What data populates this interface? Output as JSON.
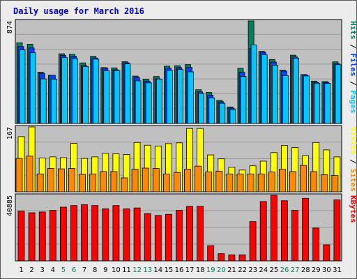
{
  "chart_data": {
    "type": "bar",
    "title": "Daily usage for March 2016",
    "categories": [
      "1",
      "2",
      "3",
      "4",
      "5",
      "6",
      "7",
      "8",
      "9",
      "10",
      "11",
      "12",
      "13",
      "14",
      "15",
      "16",
      "17",
      "18",
      "19",
      "20",
      "21",
      "22",
      "23",
      "24",
      "25",
      "26",
      "27",
      "28",
      "29",
      "30",
      "31"
    ],
    "weekend_days": [
      "5",
      "6",
      "12",
      "13",
      "19",
      "20",
      "26",
      "27"
    ],
    "colors": {
      "title": "#0000c0",
      "plot_bg": "#c0c0c0",
      "grid": "#9a9a9a",
      "hits": "#00805c",
      "files": "#0040ff",
      "pages": "#00c8ff",
      "visits": "#ffff00",
      "sites": "#ff8800",
      "kbytes": "#ff0000",
      "weekday_label": "#000000",
      "weekend_label": "#00805c"
    },
    "panels": [
      {
        "id": "hits-files-pages",
        "max_label": "874",
        "ylim": [
          0,
          874
        ],
        "legend": [
          {
            "label": "Pages",
            "color": "#00c8ff"
          },
          {
            "label": "Files",
            "color": "#0040ff"
          },
          {
            "label": "Hits",
            "color": "#00805c"
          }
        ],
        "series": [
          {
            "name": "Hits",
            "color": "#00805c",
            "values": [
              688,
              675,
              437,
              411,
              594,
              590,
              516,
              572,
              476,
              474,
              526,
              404,
              378,
              400,
              489,
              492,
              501,
              287,
              265,
              197,
              141,
              470,
              874,
              614,
              545,
              454,
              582,
              417,
              361,
              357,
              525
            ]
          },
          {
            "name": "Files",
            "color": "#0040ff",
            "values": [
              656,
              644,
              427,
              411,
              580,
              573,
              493,
              558,
              470,
              457,
              517,
              393,
              361,
              380,
              472,
              476,
              478,
              269,
              242,
              185,
              131,
              436,
              640,
              607,
              523,
              446,
              567,
              413,
              350,
              350,
              510
            ]
          },
          {
            "name": "Pages",
            "color": "#00c8ff",
            "values": [
              627,
              602,
              380,
              377,
              562,
              553,
              486,
              548,
              449,
              451,
              508,
              363,
              346,
              378,
              452,
              461,
              440,
              256,
              218,
              172,
              119,
              401,
              670,
              585,
              497,
              407,
              556,
              405,
              343,
              342,
              501
            ]
          }
        ]
      },
      {
        "id": "visits-sites",
        "max_label": "167",
        "ylim": [
          0,
          167
        ],
        "legend": [
          {
            "label": "Sites",
            "color": "#ff8800"
          },
          {
            "label": "Visits",
            "color": "#ffff00"
          }
        ],
        "series": [
          {
            "name": "Visits",
            "color": "#ffff00",
            "values": [
              142,
              167,
              87,
              90,
              88,
              125,
              86,
              90,
              99,
              98,
              96,
              127,
              120,
              118,
              124,
              126,
              163,
              163,
              95,
              85,
              63,
              56,
              67,
              79,
              101,
              119,
              114,
              93,
              127,
              108,
              90
            ]
          },
          {
            "name": "Sites",
            "color": "#ff8800",
            "values": [
              86,
              92,
              46,
              60,
              59,
              60,
              45,
              46,
              52,
              52,
              36,
              58,
              61,
              60,
              46,
              50,
              58,
              66,
              51,
              53,
              46,
              46,
              46,
              46,
              51,
              58,
              52,
              68,
              52,
              44,
              42
            ]
          }
        ]
      },
      {
        "id": "kbytes",
        "max_label": "40885",
        "ylim": [
          0,
          40885
        ],
        "legend": [
          {
            "label": "KBytes",
            "color": "#ff0000"
          }
        ],
        "series": [
          {
            "name": "KBytes",
            "color": "#ff0000",
            "values": [
              31000,
              30000,
              30500,
              31500,
              33500,
              34500,
              35000,
              34500,
              32500,
              34500,
              32500,
              33000,
              29500,
              28300,
              29000,
              31500,
              34000,
              34000,
              9500,
              4500,
              3800,
              3800,
              24500,
              37000,
              40885,
              37500,
              31500,
              39000,
              20500,
              10000,
              38000
            ]
          }
        ]
      }
    ],
    "grid": true
  }
}
